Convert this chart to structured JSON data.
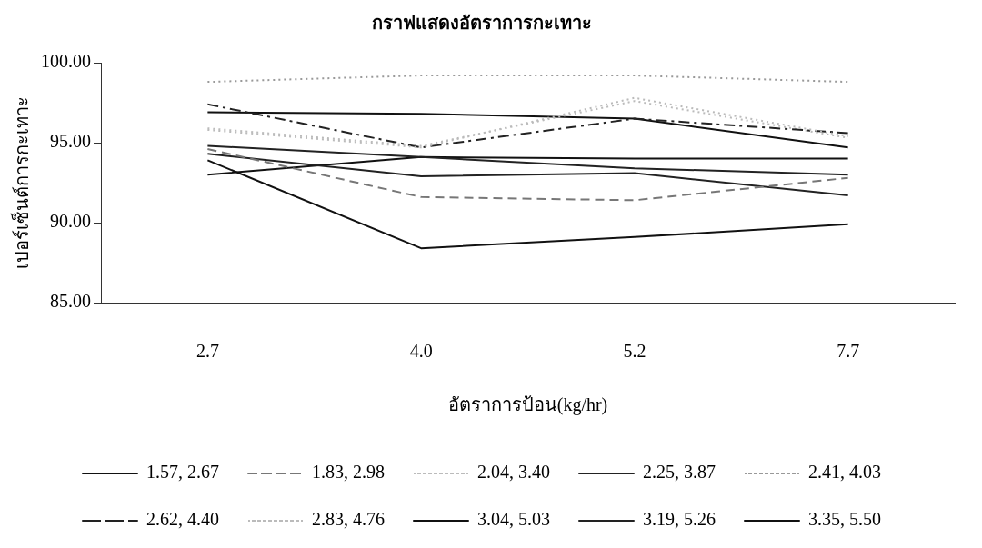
{
  "chart_data": {
    "type": "line",
    "title": "กราฟแสดงอัตราการกะเทาะ",
    "xlabel": "อัตราการป้อน(kg/hr)",
    "ylabel": "เปอร์เซ็นต์การกะเทาะ",
    "categories": [
      "2.7",
      "4.0",
      "5.2",
      "7.7"
    ],
    "ylim": [
      85,
      100
    ],
    "yticks": [
      {
        "value": 85,
        "label": "85.00"
      },
      {
        "value": 90,
        "label": "90.00"
      },
      {
        "value": 95,
        "label": "95.00"
      },
      {
        "value": 100,
        "label": "100.00"
      }
    ],
    "grid": false,
    "legend": "bottom",
    "marker": "none",
    "series": [
      {
        "name": "1.57, 2.67",
        "color": "#111111",
        "line_style": "solid",
        "values": [
          93.9,
          88.4,
          89.1,
          89.9
        ]
      },
      {
        "name": "1.83, 2.98",
        "color": "#777777",
        "line_style": "dashed",
        "values": [
          94.6,
          91.6,
          91.4,
          92.8
        ]
      },
      {
        "name": "2.04, 3.40",
        "color": "#bbbbbb",
        "line_style": "dotted",
        "values": [
          95.8,
          94.7,
          97.8,
          95.4
        ]
      },
      {
        "name": "2.25, 3.87",
        "color": "#222222",
        "line_style": "solid",
        "values": [
          94.3,
          92.9,
          93.1,
          91.7
        ]
      },
      {
        "name": "2.41, 4.03",
        "color": "#999999",
        "line_style": "dotted",
        "values": [
          98.8,
          99.2,
          99.2,
          98.8
        ]
      },
      {
        "name": "2.62, 4.40",
        "color": "#222222",
        "line_style": "dashdot",
        "values": [
          97.4,
          94.7,
          96.5,
          95.6
        ]
      },
      {
        "name": "2.83, 4.76",
        "color": "#bbbbbb",
        "line_style": "dotted",
        "values": [
          95.9,
          94.8,
          97.6,
          95.3
        ]
      },
      {
        "name": "3.04, 5.03",
        "color": "#111111",
        "line_style": "solid",
        "values": [
          96.9,
          96.8,
          96.5,
          94.7
        ]
      },
      {
        "name": "3.19, 5.26",
        "color": "#222222",
        "line_style": "solid",
        "values": [
          94.8,
          94.1,
          93.4,
          93.0
        ]
      },
      {
        "name": "3.35, 5.50",
        "color": "#111111",
        "line_style": "solid",
        "values": [
          93.0,
          94.1,
          94.0,
          94.0
        ]
      }
    ]
  }
}
